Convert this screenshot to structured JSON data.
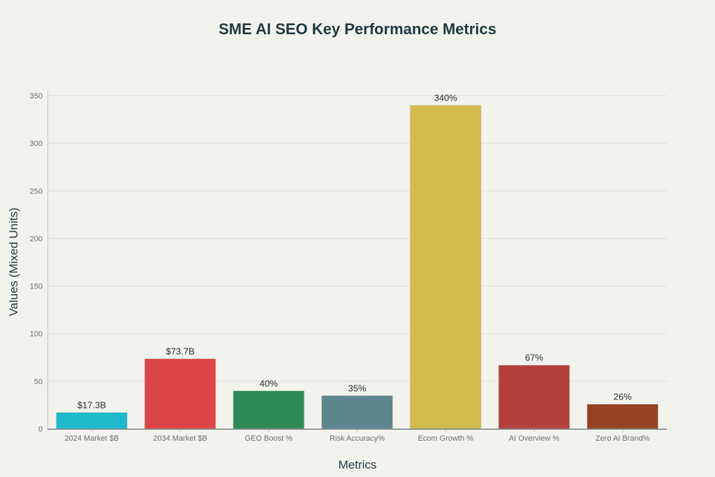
{
  "chart_data": {
    "type": "bar",
    "title": "SME AI SEO Key Performance Metrics",
    "xlabel": "Metrics",
    "ylabel": "Values (Mixed Units)",
    "ylim": [
      0,
      350
    ],
    "yticks": [
      0,
      50,
      100,
      150,
      200,
      250,
      300,
      350
    ],
    "grid": true,
    "categories": [
      "2024 Market $B",
      "2034 Market $B",
      "GEO Boost %",
      "Risk Accuracy%",
      "Ecom Growth %",
      "AI Overview %",
      "Zero AI Brand%"
    ],
    "values": [
      17.3,
      73.7,
      40,
      35,
      340,
      67,
      26
    ],
    "data_labels": [
      "$17.3B",
      "$73.7B",
      "40%",
      "35%",
      "340%",
      "67%",
      "26%"
    ],
    "colors": [
      "#1fb8cd",
      "#db4545",
      "#2e8b57",
      "#5d878f",
      "#d2ba4c",
      "#b4413c",
      "#964325"
    ]
  }
}
